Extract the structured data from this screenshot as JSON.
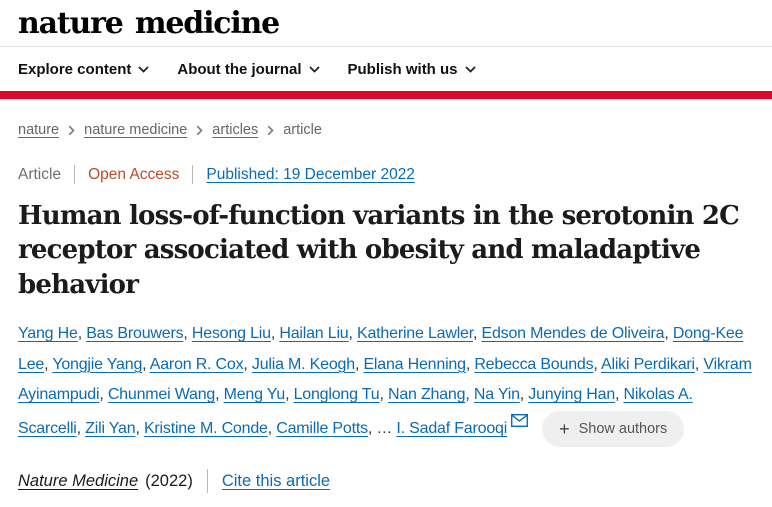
{
  "brand": {
    "logo": "nature medicine"
  },
  "colors": {
    "brand_red": "#dc0a2d",
    "link_blue": "#0c6ab2",
    "open_access_orange": "#b74e28",
    "muted_gray": "#666666",
    "pill_gray": "#efefef"
  },
  "nav": {
    "items": [
      "Explore content",
      "About the journal",
      "Publish with us"
    ]
  },
  "breadcrumb": {
    "items": [
      {
        "label": "nature",
        "link": true
      },
      {
        "label": "nature medicine",
        "link": true
      },
      {
        "label": "articles",
        "link": true
      },
      {
        "label": "article",
        "link": false
      }
    ]
  },
  "article_meta": {
    "type": "Article",
    "access": "Open Access",
    "published": "Published: 19 December 2022"
  },
  "title": "Human loss-of-function variants in the serotonin 2C receptor associated with obesity and maladaptive behavior",
  "authors": {
    "list": [
      "Yang He",
      "Bas Brouwers",
      "Hesong Liu",
      "Hailan Liu",
      "Katherine Lawler",
      "Edson Mendes de Oliveira",
      "Dong-Kee Lee",
      "Yongjie Yang",
      "Aaron R. Cox",
      "Julia M. Keogh",
      "Elana Henning",
      "Rebecca Bounds",
      "Aliki Perdikari",
      "Vikram Ayinampudi",
      "Chunmei Wang",
      "Meng Yu",
      "Longlong Tu",
      "Nan Zhang",
      "Na Yin",
      "Junying Han",
      "Nikolas A. Scarcelli",
      "Zili Yan",
      "Kristine M. Conde",
      "Camille Potts"
    ],
    "ellipsis": "…",
    "corresponding": "I. Sadaf Farooqi",
    "show_authors": {
      "icon": "+",
      "label": "Show authors"
    }
  },
  "citation": {
    "journal": "Nature Medicine",
    "year": "(2022)",
    "cite_link": "Cite this article"
  }
}
